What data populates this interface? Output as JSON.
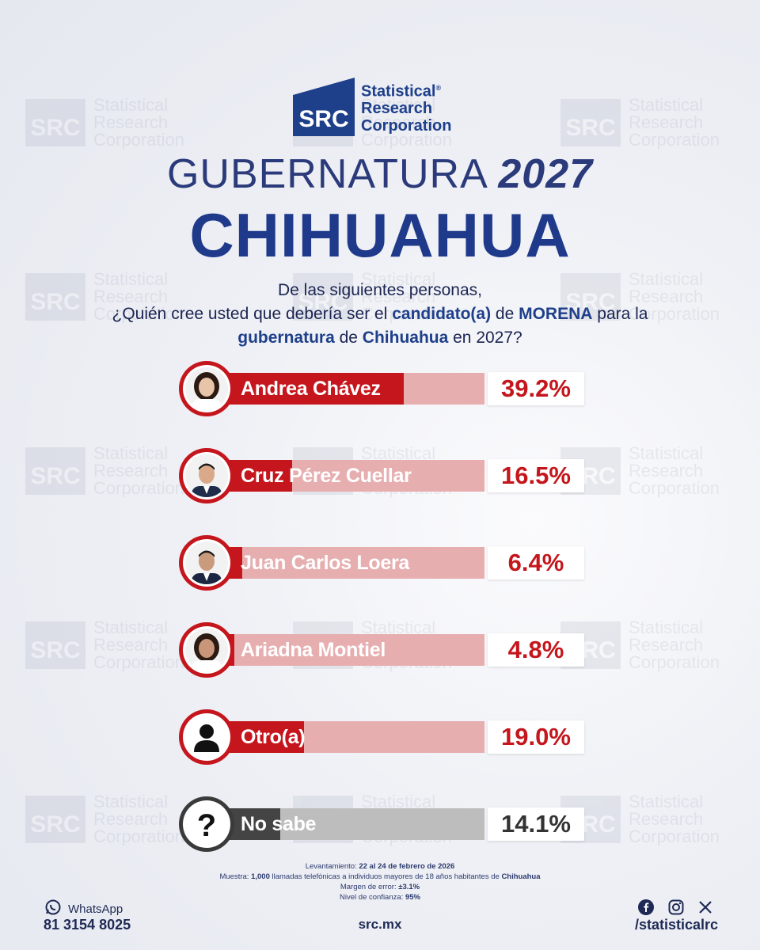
{
  "logo": {
    "abbr": "SRC",
    "line1": "Statistical",
    "line2": "Research",
    "line3": "Corporation",
    "registered": "®"
  },
  "watermark": {
    "abbr": "SRC",
    "line1": "Statistical",
    "line2": "Research",
    "line3": "Corporation"
  },
  "title": {
    "prefix": "GUBERNATURA",
    "year": "2027",
    "state": "CHIHUAHUA"
  },
  "question": {
    "line1": "De las siguientes personas,",
    "line2a": "¿Quién cree usted que debería ser el ",
    "line2b": "candidato(a)",
    "line2c": " de ",
    "line2d": "MORENA",
    "line2e": " para la",
    "line3a": "gubernatura",
    "line3b": " de ",
    "line3c": "Chihuahua",
    "line3d": " en 2027?"
  },
  "chart_data": {
    "type": "bar",
    "orientation": "horizontal",
    "categories": [
      "Andrea Chávez",
      "Cruz Pérez Cuellar",
      "Juan Carlos Loera",
      "Ariadna Montiel",
      "Otro(a)",
      "No sabe"
    ],
    "values": [
      39.2,
      16.5,
      6.4,
      4.8,
      19.0,
      14.1
    ],
    "value_labels": [
      "39.2%",
      "16.5%",
      "6.4%",
      "4.8%",
      "19.0%",
      "14.1%"
    ],
    "xlim": [
      0,
      50
    ],
    "colors": {
      "bar": "#c4161c",
      "bar_track": "#e7aeb0",
      "nosabe_bar": "#444444",
      "nosabe_track": "#bdbdbd"
    },
    "icons": [
      "person-photo",
      "person-photo",
      "person-photo",
      "person-photo",
      "user-silhouette-icon",
      "question-mark-icon"
    ]
  },
  "notes": {
    "l1_label": "Levantamiento: ",
    "l1_value": "22 al 24 de febrero de 2026",
    "l2_label": "Muestra: ",
    "l2_value": "1,000",
    "l2_mid": " llamadas telefónicas a individuos mayores de 18 años habitantes de ",
    "l2_place": "Chihuahua",
    "l3_label": "Margen de error: ",
    "l3_value": "±3.1%",
    "l4_label": "Nivel de confianza: ",
    "l4_value": "95%"
  },
  "footer": {
    "whatsapp_label": "WhatsApp",
    "whatsapp_number": "81 3154 8025",
    "site": "src.mx",
    "handle": "/statisticalrc"
  }
}
